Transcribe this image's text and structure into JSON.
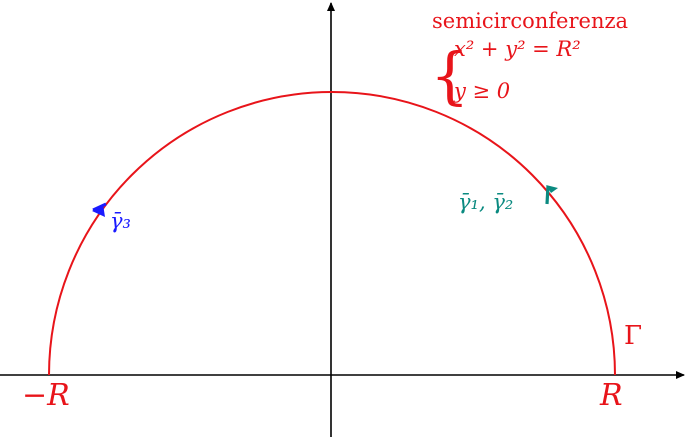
{
  "colors": {
    "axis": "#000000",
    "curve": "#e8141a",
    "gamma3": "#1a1aff",
    "gamma12": "#0a8a80"
  },
  "labels": {
    "minus_r": "−R",
    "r": "R",
    "gamma_big": "Γ",
    "semi_title": "semicirconferenza",
    "brace": "{",
    "eq_line1": "x² + y² = R²",
    "eq_line2": "y ≥ 0",
    "gamma3_label": "γ̄₃",
    "gamma12_label": "γ̄₁, γ̄₂"
  }
}
